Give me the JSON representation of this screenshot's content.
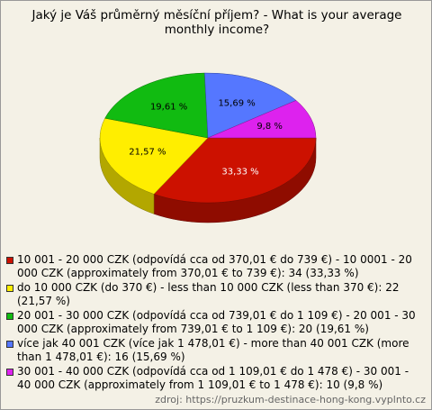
{
  "chart_data": {
    "type": "pie",
    "title": "Jaký je Váš průměrný měsíční příjem? - What is your average monthly income?",
    "categories": [
      "10 001 - 20 000 CZK (odpovídá cca od 370,01 € do 739 €) - 10 0001 - 20 000 CZK (approximately from 370,01 € to 739 €): 34 (33,33 %)",
      "do 10 000 CZK (do 370 €) - less than 10 000 CZK (less than 370 €): 22 (21,57 %)",
      "20 001 - 30 000 CZK (odpovídá cca od 739,01 € do 1 109 €) - 20 001 - 30 000 CZK (approximately from 739,01 € to 1 109 €): 20 (19,61 %)",
      "více jak 40 001 CZK (více jak 1 478,01 €) - more than 40 001 CZK (more than 1 478,01 €): 16 (15,69 %)",
      "30 001 - 40 000 CZK (odpovídá cca od 1 109,01 € do 1 478 €) - 30 001 - 40 000 CZK (approximately from 1 109,01 € to 1 478 €): 10 (9,8 %)"
    ],
    "values": [
      33.33,
      21.57,
      19.61,
      15.69,
      9.8
    ],
    "value_labels": [
      "33,33 %",
      "21,57 %",
      "19,61 %",
      "15,69 %",
      "9,8 %"
    ],
    "colors": [
      "#cc1100",
      "#ffee00",
      "#11bb11",
      "#5577ff",
      "#dd22ee"
    ],
    "source": "zdroj: https://pruzkum-destinace-hong-kong.vyplnto.cz"
  }
}
